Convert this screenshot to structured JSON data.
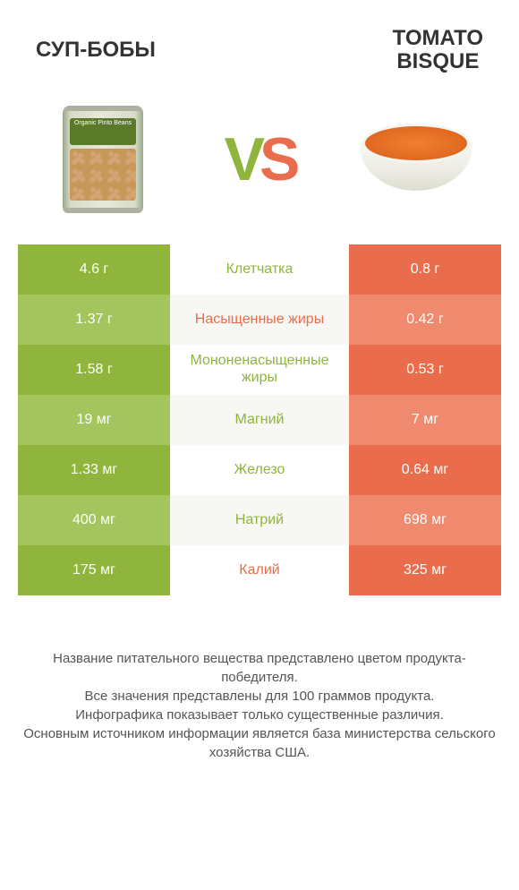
{
  "colors": {
    "left_primary": "#8fb53c",
    "left_alt": "#a4c45e",
    "right_primary": "#e96d4c",
    "right_alt": "#ef8a6f",
    "mid_alt": "#f7f7f4",
    "text": "#333333"
  },
  "header": {
    "left_title": "Суп-бобы",
    "right_title_line1": "Tomato",
    "right_title_line2": "bisque"
  },
  "vs": {
    "v": "V",
    "s": "S"
  },
  "can_label": "Organic\nPinto Beans",
  "table": {
    "rows": [
      {
        "left": "4.6 г",
        "label": "Клетчатка",
        "right": "0.8 г",
        "winner": "left"
      },
      {
        "left": "1.37 г",
        "label": "Насыщенные жиры",
        "right": "0.42 г",
        "winner": "right"
      },
      {
        "left": "1.58 г",
        "label": "Мононенасыщенные жиры",
        "right": "0.53 г",
        "winner": "left"
      },
      {
        "left": "19 мг",
        "label": "Магний",
        "right": "7 мг",
        "winner": "left"
      },
      {
        "left": "1.33 мг",
        "label": "Железо",
        "right": "0.64 мг",
        "winner": "left"
      },
      {
        "left": "400 мг",
        "label": "Натрий",
        "right": "698 мг",
        "winner": "left"
      },
      {
        "left": "175 мг",
        "label": "Калий",
        "right": "325 мг",
        "winner": "right"
      }
    ]
  },
  "footer": {
    "line1": "Название питательного вещества представлено цветом продукта-победителя.",
    "line2": "Все значения представлены для 100 граммов продукта.",
    "line3": "Инфографика показывает только существенные различия.",
    "line4": "Основным источником информации является база министерства сельского хозяйства США."
  }
}
